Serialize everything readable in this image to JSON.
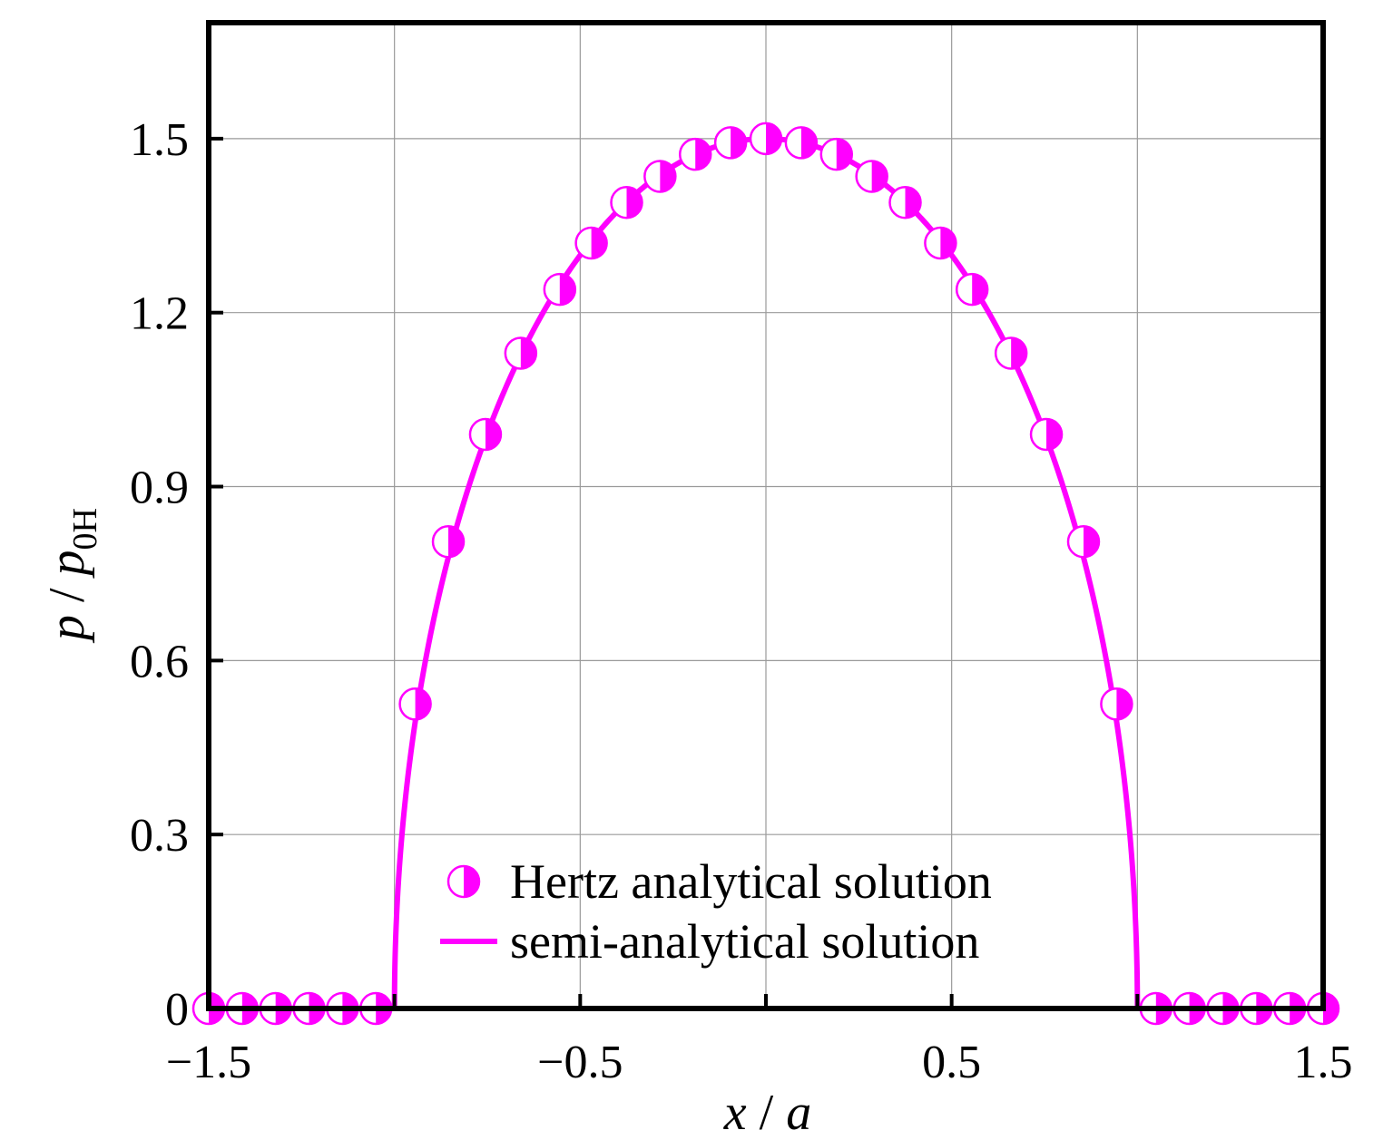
{
  "chart_data": {
    "type": "line",
    "xlabel": "x / a",
    "ylabel": "p / p0H",
    "xlabel_parts": {
      "var": "x",
      "sep": " / ",
      "den": "a"
    },
    "ylabel_parts": {
      "var": "p",
      "sep": " / ",
      "den": "p",
      "sub": "0H"
    },
    "xlim": [
      -1.5,
      1.5
    ],
    "ylim": [
      0,
      1.7
    ],
    "x_ticks": [
      -1.5,
      -0.5,
      0.5,
      1.5
    ],
    "x_tick_labels": [
      "−1.5",
      "−0.5",
      "0.5",
      "1.5"
    ],
    "y_ticks": [
      0,
      0.3,
      0.6,
      0.9,
      1.2,
      1.5
    ],
    "y_tick_labels": [
      "0",
      "0.3",
      "0.6",
      "0.9",
      "1.2",
      "1.5"
    ],
    "grid": true,
    "legend_position": "bottom-center",
    "series": [
      {
        "name": "Hertz analytical solution",
        "style": "markers",
        "marker": "half-filled-circle",
        "color": "#ff00ff",
        "x": [
          -1.5,
          -1.41,
          -1.32,
          -1.23,
          -1.14,
          -1.05,
          -0.944,
          -0.855,
          -0.755,
          -0.66,
          -0.555,
          -0.47,
          -0.375,
          -0.285,
          -0.19,
          -0.095,
          0.0,
          0.095,
          0.19,
          0.285,
          0.375,
          0.47,
          0.555,
          0.66,
          0.755,
          0.855,
          0.944,
          1.05,
          1.14,
          1.23,
          1.32,
          1.41,
          1.5
        ],
        "y": [
          0,
          0,
          0,
          0,
          0,
          0,
          0.525,
          0.805,
          0.99,
          1.13,
          1.24,
          1.32,
          1.39,
          1.435,
          1.473,
          1.493,
          1.5,
          1.493,
          1.473,
          1.435,
          1.39,
          1.32,
          1.24,
          1.13,
          0.99,
          0.805,
          0.525,
          0,
          0,
          0,
          0,
          0,
          0
        ]
      },
      {
        "name": "semi-analytical solution",
        "style": "line",
        "color": "#ff00ff",
        "contact_half_width": 1.0,
        "peak": 1.5,
        "x": [
          -1.5,
          -1.0,
          -0.995,
          -0.98,
          -0.95,
          -0.9,
          -0.8,
          -0.7,
          -0.6,
          -0.5,
          -0.4,
          -0.3,
          -0.2,
          -0.1,
          0.0,
          0.1,
          0.2,
          0.3,
          0.4,
          0.5,
          0.6,
          0.7,
          0.8,
          0.9,
          0.95,
          0.98,
          0.995,
          1.0,
          1.5
        ],
        "y": [
          0,
          0,
          0.15,
          0.298,
          0.468,
          0.654,
          0.9,
          1.071,
          1.2,
          1.299,
          1.375,
          1.431,
          1.47,
          1.492,
          1.5,
          1.492,
          1.47,
          1.431,
          1.375,
          1.299,
          1.2,
          1.071,
          0.9,
          0.654,
          0.468,
          0.298,
          0.15,
          0,
          0
        ]
      }
    ]
  }
}
